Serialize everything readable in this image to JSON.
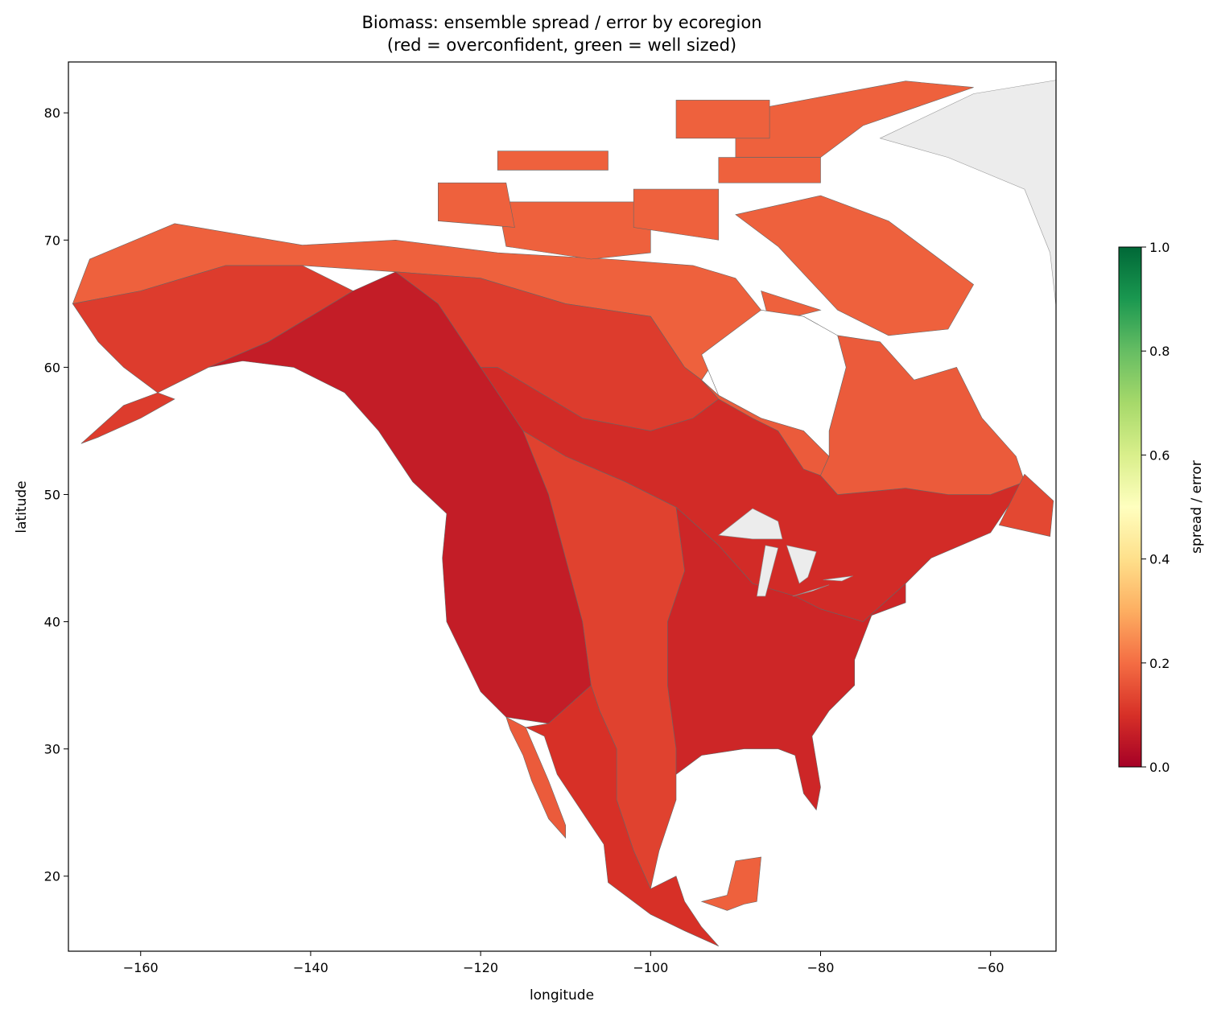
{
  "chart_data": {
    "type": "choropleth",
    "title": "Biomass: ensemble spread / error by ecoregion",
    "subtitle": "(red = overconfident, green = well sized)",
    "x_label": "longitude",
    "y_label": "latitude",
    "xlim": [
      -168.5,
      -52.3
    ],
    "ylim": [
      14.1,
      84.0
    ],
    "xticks": [
      {
        "value": -160,
        "label": "−160"
      },
      {
        "value": -140,
        "label": "−140"
      },
      {
        "value": -120,
        "label": "−120"
      },
      {
        "value": -100,
        "label": "−100"
      },
      {
        "value": -80,
        "label": "−80"
      },
      {
        "value": -60,
        "label": "−60"
      }
    ],
    "yticks": [
      20,
      30,
      40,
      50,
      60,
      70,
      80
    ],
    "values": [
      0.18,
      0.12,
      0.06,
      0.12,
      0.09,
      0.13,
      0.08,
      0.1,
      0.17,
      0.18,
      0.17,
      0.17,
      0.18,
      0.14
    ],
    "no_data_color": "#ececec",
    "edge_color": "#666666",
    "colorbar": {
      "label": "spread / error",
      "cmap": [
        "#a50026",
        "#d73027",
        "#f46d43",
        "#fdae61",
        "#fee08b",
        "#ffffbf",
        "#d9ef8b",
        "#a6d96a",
        "#66bd63",
        "#1a9850",
        "#006837"
      ],
      "clim": [
        0,
        1
      ],
      "ticks": [
        {
          "value": 0,
          "label": "0.0"
        },
        0.2,
        0.4,
        0.6,
        0.8,
        {
          "value": 1,
          "label": "1.0"
        }
      ]
    }
  }
}
